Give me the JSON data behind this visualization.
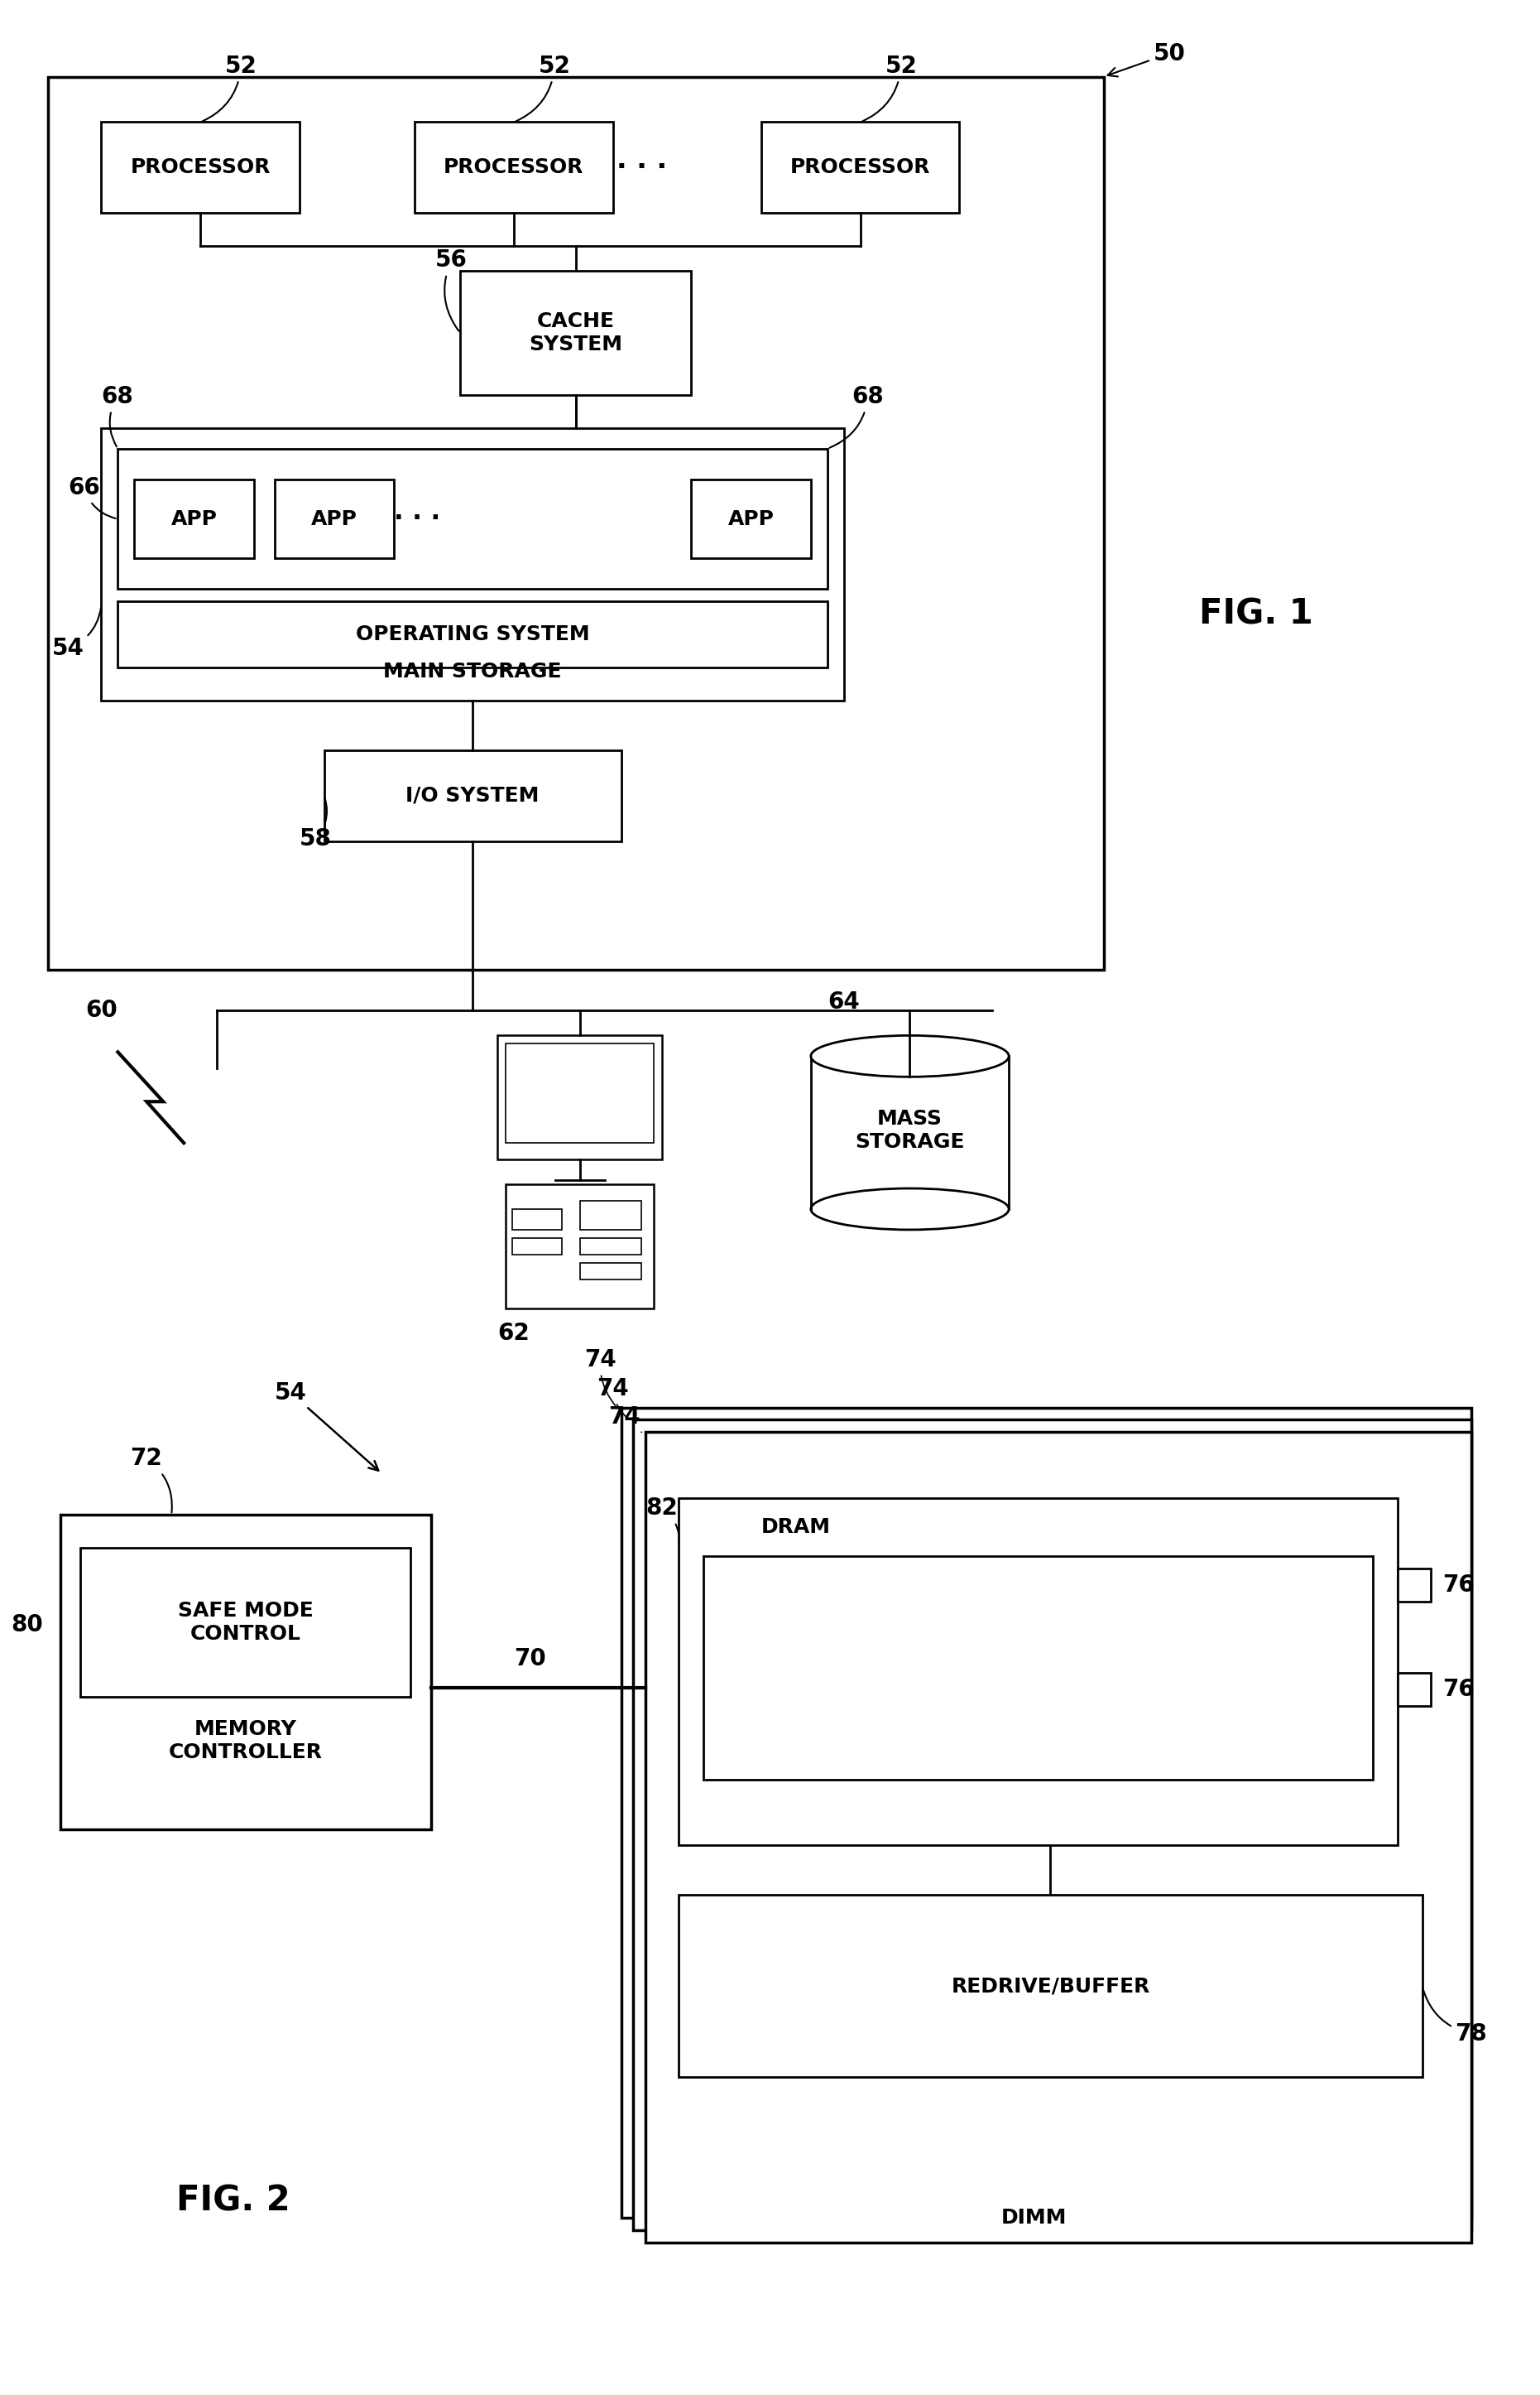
{
  "fig_width": 18.61,
  "fig_height": 28.92,
  "bg_color": "#ffffff",
  "lc": "#000000",
  "fig1_label": "FIG. 1",
  "fig2_label": "FIG. 2",
  "texts": {
    "processor": "PROCESSOR",
    "cache_system": "CACHE\nSYSTEM",
    "app": "APP",
    "operating_system": "OPERATING SYSTEM",
    "main_storage": "MAIN STORAGE",
    "io_system": "I/O SYSTEM",
    "mass_storage": "MASS\nSTORAGE",
    "memory_controller": "MEMORY\nCONTROLLER",
    "safe_mode_control": "SAFE MODE\nCONTROL",
    "dram": "DRAM",
    "redrive_buffer": "REDRIVE/BUFFER",
    "dimm": "DIMM"
  }
}
